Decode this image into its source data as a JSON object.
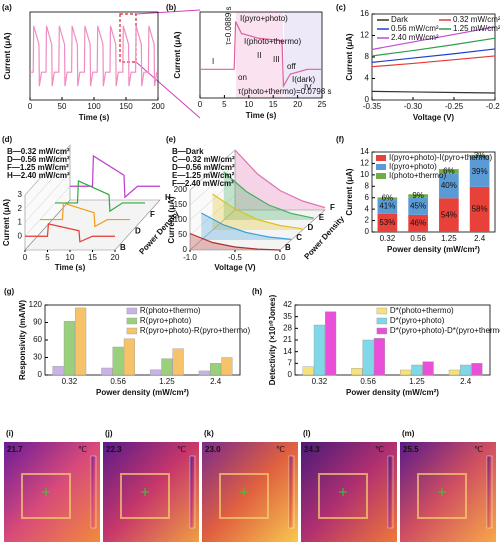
{
  "chart_data": [
    {
      "panel": "(a)",
      "type": "line",
      "xlabel": "Time (s)",
      "ylabel": "Current (μA)",
      "xlim": [
        0,
        200
      ],
      "xticks": [
        0,
        50,
        100,
        150,
        200
      ],
      "ylim": [
        -0.6,
        1.3
      ],
      "color": "#f08cc0",
      "x": [
        0,
        5,
        5.8,
        14,
        14.6,
        18,
        25,
        25.8,
        34,
        34.6,
        38,
        45,
        45.8,
        54,
        54.6,
        58,
        65,
        65.8,
        74,
        74.6,
        78,
        85,
        85.8,
        94,
        94.6,
        98,
        105,
        105.8,
        114,
        114.6,
        118,
        125,
        125.8,
        134,
        134.6,
        138,
        145,
        145.8,
        154,
        154.6,
        158,
        165,
        165.8,
        174,
        174.6,
        178,
        185,
        185.8,
        194,
        194.6,
        198,
        200
      ],
      "values": [
        0,
        0,
        1,
        0.6,
        -0.3,
        0,
        0,
        1,
        0.6,
        -0.3,
        0,
        0,
        1,
        0.6,
        -0.3,
        0,
        0,
        1,
        0.6,
        -0.3,
        0,
        0,
        1,
        0.6,
        -0.3,
        0,
        0,
        1,
        0.6,
        -0.3,
        0,
        0,
        1,
        0.6,
        -0.3,
        0,
        0,
        1,
        0.6,
        -0.3,
        0,
        0,
        1,
        0.6,
        -0.3,
        0,
        0,
        1,
        0.6,
        -0.3,
        0,
        0
      ]
    },
    {
      "panel": "(b)",
      "type": "line",
      "xlabel": "Time (s)",
      "ylabel": "Current (μA)",
      "xlim": [
        0,
        25
      ],
      "xticks": [
        0,
        5,
        10,
        15,
        20,
        25
      ],
      "ylim": [
        -0.6,
        1.2
      ],
      "color": "#e0609e",
      "x": [
        0,
        7,
        7.3,
        8.5,
        12,
        16.8,
        17.1,
        18.5,
        22,
        25
      ],
      "values": [
        0,
        0,
        1,
        0.75,
        0.65,
        0.6,
        -0.35,
        -0.1,
        0,
        0
      ],
      "annotations": [
        "I(pyro+photo)",
        "I(photo+thermo)",
        "on",
        "off",
        "I",
        "II",
        "III",
        "IV",
        "I(dark)",
        "τ=0.0889 s",
        "τ(photo+thermo)=0.0798 s"
      ]
    },
    {
      "panel": "(c)",
      "type": "line",
      "xlabel": "Voltage (V)",
      "ylabel": "Current (μA)",
      "xlim": [
        -0.35,
        -0.2
      ],
      "xticks": [
        -0.35,
        {
          "value": -0.3,
          "label": "-0.30"
        },
        -0.25,
        {
          "value": -0.2,
          "label": "-0.20"
        }
      ],
      "ylim": [
        0,
        16
      ],
      "yticks": [
        0,
        4,
        8,
        12,
        16
      ],
      "x": [
        -0.35,
        -0.3,
        -0.25,
        -0.2
      ],
      "series": [
        {
          "name": "Dark",
          "color": "#333333",
          "values": [
            1.6,
            1.5,
            1.4,
            1.3
          ]
        },
        {
          "name": "0.32 mW/cm²",
          "color": "#e53935",
          "values": [
            6.2,
            6.8,
            7.5,
            8.2
          ]
        },
        {
          "name": "0.56 mW/cm²",
          "color": "#1e40d0",
          "values": [
            7,
            7.8,
            8.6,
            9.5
          ]
        },
        {
          "name": "1.25 mW/cm²",
          "color": "#2e9d4a",
          "values": [
            8.2,
            9.2,
            10.3,
            11.5
          ]
        },
        {
          "name": "2.40 mW/cm²",
          "color": "#c04bd8",
          "values": [
            9.4,
            10.8,
            12.2,
            13.6
          ]
        }
      ]
    },
    {
      "panel": "(d)",
      "type": "waterfall",
      "xlabel": "Time (s)",
      "ylabel": "Current (μA)",
      "zlabel": "Power Density",
      "xlim": [
        0,
        20
      ],
      "xticks": [
        0,
        5,
        10,
        15,
        20
      ],
      "ylim": [
        -1,
        3
      ],
      "yticks": [
        0,
        1,
        2,
        3
      ],
      "x": [
        0,
        5,
        5.2,
        12,
        12.2,
        15,
        20
      ],
      "series": [
        {
          "name": "B—0.32 mW/cm²",
          "tag": "B",
          "color": "#e53935",
          "values": [
            0,
            0,
            0.9,
            0.4,
            -0.4,
            0,
            0
          ]
        },
        {
          "name": "D—0.56 mW/cm²",
          "tag": "D",
          "color": "#f39c12",
          "values": [
            0,
            0,
            1.2,
            0.5,
            -0.5,
            0,
            0
          ]
        },
        {
          "name": "F—1.25 mW/cm²",
          "tag": "F",
          "color": "#2eaa3f",
          "values": [
            0,
            0,
            1.6,
            0.6,
            -0.6,
            0,
            0
          ]
        },
        {
          "name": "H—2.40 mW/cm²",
          "tag": "H",
          "color": "#c03ad0",
          "values": [
            0,
            0,
            2.2,
            0.8,
            -0.8,
            0,
            0
          ]
        }
      ]
    },
    {
      "panel": "(e)",
      "type": "waterfall",
      "xlabel": "Voltage (V)",
      "ylabel": "Current (μA)",
      "zlabel": "Power Density",
      "fill": true,
      "xlim": [
        -1,
        0
      ],
      "xticks": [
        {
          "value": -1,
          "label": "-1.0"
        },
        -0.5,
        {
          "value": 0,
          "label": "0.0"
        }
      ],
      "ylim": [
        0,
        200
      ],
      "yticks": [
        0,
        50,
        100,
        150,
        200
      ],
      "x": [
        -1,
        -0.75,
        -0.5,
        -0.25,
        0
      ],
      "series": [
        {
          "name": "B—Dark",
          "tag": "B",
          "color": "#b0302a",
          "values": [
            55,
            25,
            10,
            3,
            0
          ]
        },
        {
          "name": "C—0.32 mW/cm²",
          "tag": "C",
          "color": "#3aa0d8",
          "values": [
            90,
            50,
            25,
            10,
            2
          ]
        },
        {
          "name": "D—0.56 mW/cm²",
          "tag": "D",
          "color": "#e0c020",
          "values": [
            120,
            70,
            35,
            15,
            4
          ]
        },
        {
          "name": "E—1.25 mW/cm²",
          "tag": "E",
          "color": "#40b060",
          "values": [
            160,
            95,
            50,
            22,
            6
          ]
        },
        {
          "name": "F—2.40 mW/cm²",
          "tag": "F",
          "color": "#e070b0",
          "values": [
            200,
            120,
            65,
            30,
            8
          ]
        }
      ]
    },
    {
      "panel": "(f)",
      "type": "stacked",
      "xlabel": "Power density (mW/cm²)",
      "ylabel": "Current (μA)",
      "categories": [
        "0.32",
        "0.56",
        "1.25",
        "2.4"
      ],
      "ylim": [
        0,
        14
      ],
      "yticks": [
        0,
        2,
        4,
        6,
        8,
        10,
        12,
        14
      ],
      "series": [
        {
          "name": "I(pyro+photo)-I(pyro+thermo)",
          "color": "#e8413a",
          "values": [
            3.2,
            3.0,
            5.9,
            7.9
          ],
          "share_labels": [
            "53%",
            "46%",
            "54%",
            "58%"
          ]
        },
        {
          "name": "I(pyro+photo)",
          "color": "#5b9bd5",
          "values": [
            2.5,
            3.0,
            4.4,
            5.3
          ],
          "share_labels": [
            "41%",
            "45%",
            "40%",
            "39%"
          ]
        },
        {
          "name": "I(photo+thermo)",
          "color": "#70ad47",
          "values": [
            0.35,
            0.6,
            0.7,
            0.3
          ],
          "share_labels": [
            "6%",
            "9%",
            "6%",
            "3%"
          ]
        }
      ]
    },
    {
      "panel": "(g)",
      "type": "bar",
      "xlabel": "Power density (mW/cm²)",
      "ylabel": "Responsivity (mA/W)",
      "categories": [
        "0.32",
        "0.56",
        "1.25",
        "2.4"
      ],
      "ylim": [
        0,
        120
      ],
      "yticks": [
        0,
        30,
        60,
        90,
        120
      ],
      "series": [
        {
          "name": "R(photo+thermo)",
          "color": "#c9b3e6",
          "values": [
            15,
            12,
            9,
            7
          ]
        },
        {
          "name": "R(pyro+photo)",
          "color": "#9ad07c",
          "values": [
            92,
            48,
            28,
            20
          ]
        },
        {
          "name": "R(pyro+photo)-R(pyro+thermo)",
          "color": "#f6c36b",
          "values": [
            115,
            62,
            45,
            30
          ]
        }
      ]
    },
    {
      "panel": "(h)",
      "type": "bar",
      "xlabel": "Power density (mW/cm²)",
      "ylabel": "Detectivity (×10¹⁰Jones)",
      "categories": [
        "0.32",
        "0.56",
        "1.25",
        "2.4"
      ],
      "ylim": [
        0,
        42
      ],
      "yticks": [
        0,
        7,
        14,
        21,
        28,
        35,
        42
      ],
      "series": [
        {
          "name": "D*(photo+thermo)",
          "color": "#f5e27a",
          "values": [
            5,
            4,
            3,
            3
          ]
        },
        {
          "name": "D*(pyro+photo)",
          "color": "#7fd8e8",
          "values": [
            30,
            21,
            6,
            6
          ]
        },
        {
          "name": "D*(pyro+photo)-D*(pyro+thermo)",
          "color": "#e94fd8",
          "values": [
            38,
            22,
            8,
            7
          ]
        }
      ]
    }
  ],
  "thermal_unit": "℃",
  "thermal_images": [
    {
      "panel": "(i)",
      "temperature": "21.7"
    },
    {
      "panel": "(j)",
      "temperature": "22.3"
    },
    {
      "panel": "(k)",
      "temperature": "23.0"
    },
    {
      "panel": "(l)",
      "temperature": "24.3"
    },
    {
      "panel": "(m)",
      "temperature": "25.5"
    }
  ]
}
